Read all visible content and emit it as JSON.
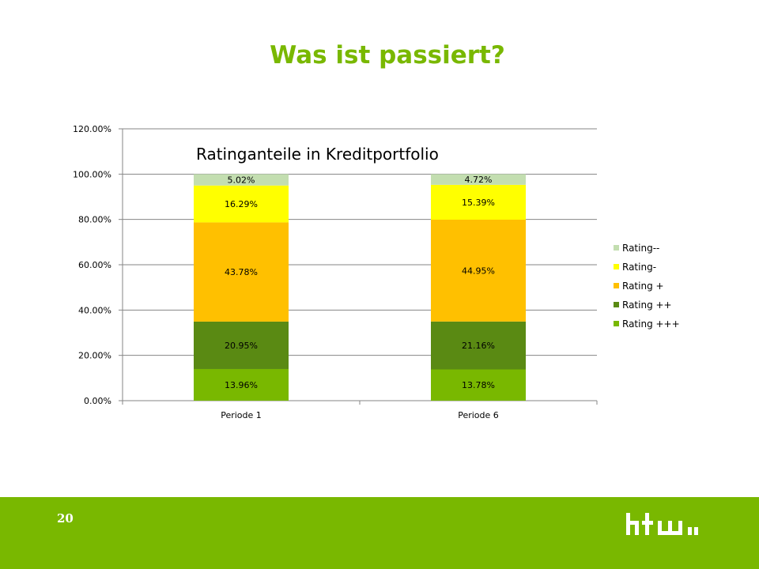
{
  "slide": {
    "title": "Was ist passiert?",
    "page_number": "20",
    "logo_text": "htw"
  },
  "colors": {
    "accent": "#79b800"
  },
  "chart_data": {
    "type": "bar",
    "stacked": true,
    "title": "Ratinganteile  in Kreditportfolio",
    "categories": [
      "Periode 1",
      "Periode 6"
    ],
    "ylim": [
      0,
      120
    ],
    "yticks": [
      "0.00%",
      "20.00%",
      "40.00%",
      "60.00%",
      "80.00%",
      "100.00%",
      "120.00%"
    ],
    "grid": true,
    "legend_position": "right",
    "series": [
      {
        "name": "Rating +++",
        "color": "#79b800",
        "values": [
          13.96,
          13.78
        ],
        "labels": [
          "13.96%",
          "13.78%"
        ]
      },
      {
        "name": "Rating ++",
        "color": "#5a8a13",
        "values": [
          20.95,
          21.16
        ],
        "labels": [
          "20.95%",
          "21.16%"
        ]
      },
      {
        "name": "Rating +",
        "color": "#ffc000",
        "values": [
          43.78,
          44.95
        ],
        "labels": [
          "43.78%",
          "44.95%"
        ]
      },
      {
        "name": "Rating-",
        "color": "#ffff00",
        "values": [
          16.29,
          15.39
        ],
        "labels": [
          "16.29%",
          "15.39%"
        ]
      },
      {
        "name": "Rating--",
        "color": "#c3deb0",
        "values": [
          5.02,
          4.72
        ],
        "labels": [
          "5.02%",
          "4.72%"
        ]
      }
    ]
  }
}
